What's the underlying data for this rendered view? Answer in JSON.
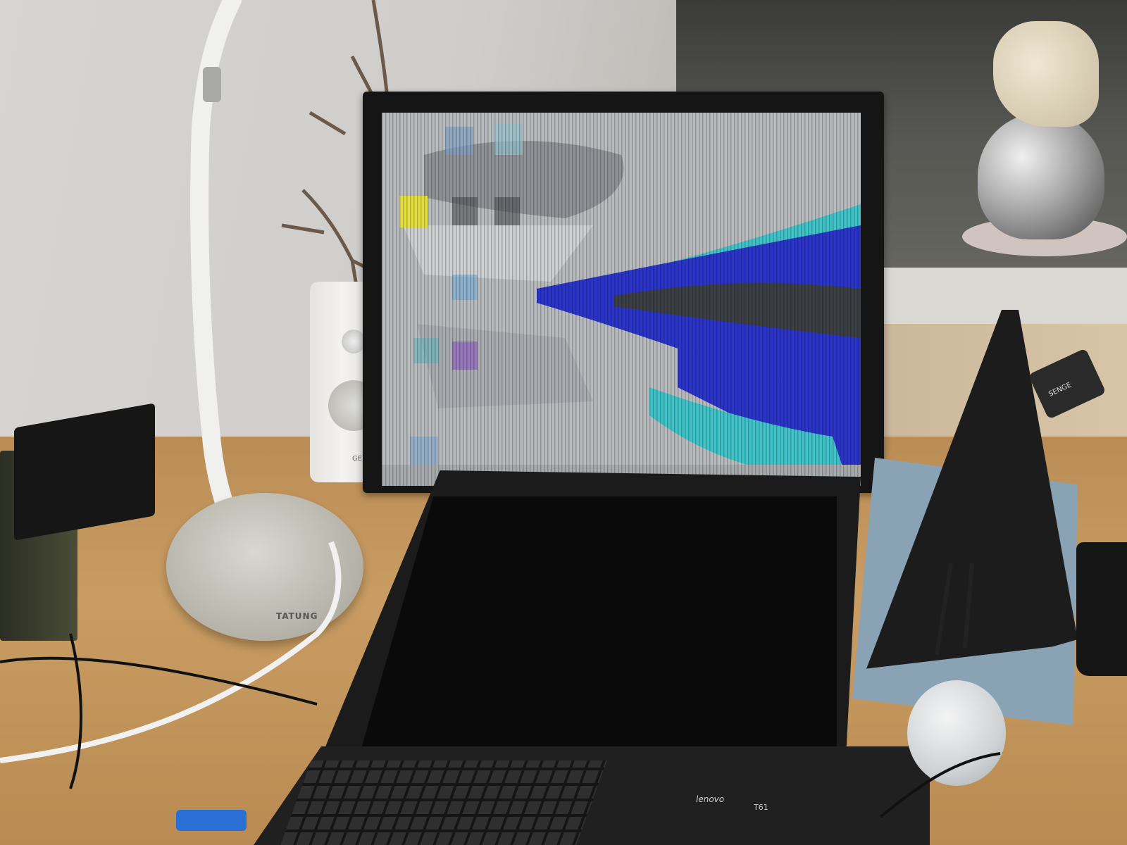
{
  "scene": {
    "description_tags": [
      "external-monitor-with-display-artifacts",
      "open-laptop",
      "desk-lamp",
      "studio-speaker",
      "tablet-on-stand",
      "kettle"
    ]
  },
  "labels": {
    "lamp_brand": "TATUNG",
    "speaker_brand": "GENELEC",
    "laptop_brand": "lenovo",
    "laptop_model": "T61",
    "hub_brand": "SENGE"
  },
  "colors": {
    "wall": "#d6d5d2",
    "desk": "#c89c62",
    "monitor_bezel": "#151515",
    "screen_gray": "#b9bcbf",
    "screen_blue": "#2a34c8",
    "screen_cyan": "#3fc2c8",
    "screen_dark_band": "#3b3f44"
  }
}
